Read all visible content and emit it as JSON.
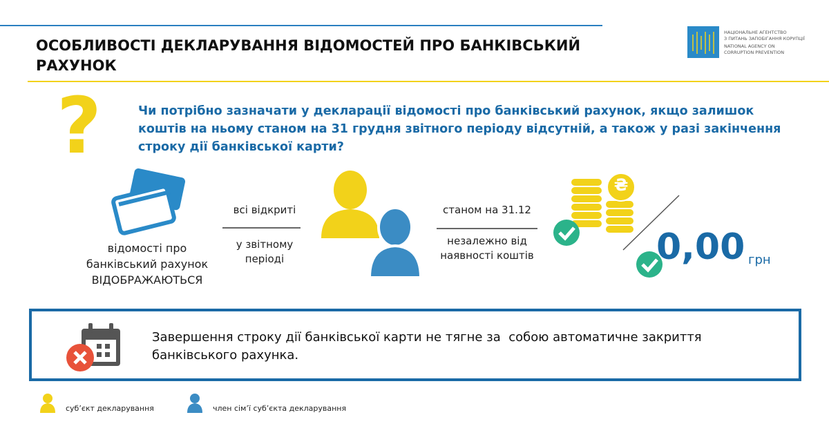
{
  "header": {
    "title": "ОСОБЛИВОСТІ ДЕКЛАРУВАННЯ ВІДОМОСТЕЙ ПРО БАНКІВСЬКИЙ РАХУНОК",
    "logo": [
      "НАЦІОНАЛЬНЕ АГЕНТСТВО",
      "З ПИТАНЬ ЗАПОБІГАННЯ КОРУПЦІЇ",
      "NATIONAL AGENCY ON",
      "CORRUPTION PREVENTION"
    ]
  },
  "question": {
    "mark": "?",
    "text": "Чи потрібно зазначати у декларації відомості про банківський рахунок, якщо залишок коштів на ньому станом на 31 грудня звітного періоду відсутній, а також у разі закінчення строку дії банківської карти?"
  },
  "answer": {
    "caption": "відомості про банківський рахунок",
    "emphasis": "ВІДОБРАЖАЮТЬСЯ",
    "left_top": "всі відкриті",
    "left_bottom": "у звітному періоді",
    "right_top": "станом на 31.12",
    "right_bottom": "незалежно від наявності коштів",
    "currency_sign": "₴",
    "amount": "0,00",
    "unit": "грн"
  },
  "notice": {
    "text": "Завершення строку дії банківської карти не тягне за  собою автоматичне закриття банківського рахунка."
  },
  "legend": {
    "items": [
      "суб’єкт декларування",
      "член сім’ї суб’єкта декларування"
    ]
  }
}
